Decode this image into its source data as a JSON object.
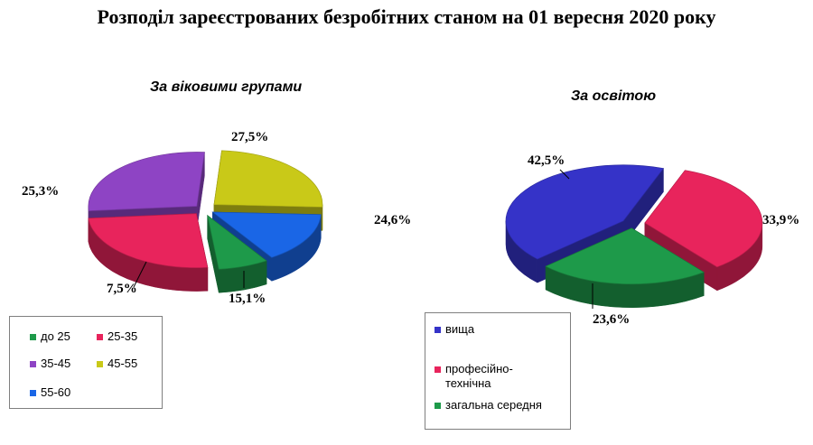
{
  "title": "Розподіл зареєстрованих безробітних станом на 01 вересня 2020 року",
  "chart_data": [
    {
      "type": "pie",
      "title": "За віковими групами",
      "series": [
        {
          "label": "до 25",
          "value": 7.5,
          "value_label": "7,5%",
          "color": "#1e9a4a"
        },
        {
          "label": "25-35",
          "value": 25.3,
          "value_label": "25,3%",
          "color": "#e8245c"
        },
        {
          "label": "35-45",
          "value": 27.5,
          "value_label": "27,5%",
          "color": "#8e44c4"
        },
        {
          "label": "45-55",
          "value": 24.6,
          "value_label": "24,6%",
          "color": "#c9c918"
        },
        {
          "label": "55-60",
          "value": 15.1,
          "value_label": "15,1%",
          "color": "#1a66e6"
        }
      ],
      "legend": [
        "до 25",
        "25-35",
        "35-45",
        "45-55",
        "55-60"
      ],
      "legend_placement": "bottom-left"
    },
    {
      "type": "pie",
      "title": "За освітою",
      "series": [
        {
          "label": "вища",
          "value": 42.5,
          "value_label": "42,5%",
          "color": "#3533c8"
        },
        {
          "label": "професійно-технічна",
          "value": 33.9,
          "value_label": "33,9%",
          "color": "#e8245c"
        },
        {
          "label": "загальна середня",
          "value": 23.6,
          "value_label": "23,6%",
          "color": "#1e9a4a"
        }
      ],
      "legend": [
        "вища",
        "професійно-\nтехнічна",
        "загальна середня"
      ],
      "legend_placement": "bottom-left"
    }
  ]
}
